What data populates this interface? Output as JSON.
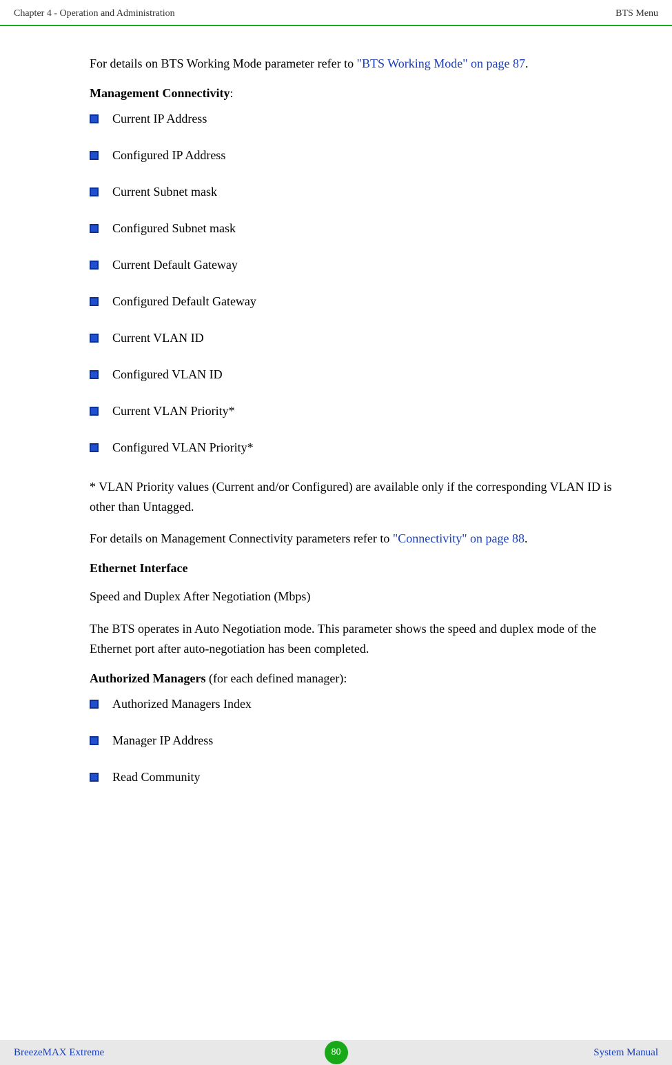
{
  "header": {
    "left": "Chapter 4 - Operation and Administration",
    "right": "BTS Menu"
  },
  "intro": {
    "prefix": "For details on BTS Working Mode parameter refer to ",
    "link": "\"BTS Working Mode\" on page 87",
    "suffix": "."
  },
  "management_connectivity": {
    "title": "Management Connectivity",
    "items": [
      "Current IP Address",
      "Configured IP Address",
      "Current Subnet mask",
      "Configured Subnet mask",
      "Current Default Gateway",
      "Configured Default Gateway",
      "Current VLAN ID",
      "Configured VLAN ID",
      "Current VLAN Priority*",
      "Configured VLAN Priority*"
    ]
  },
  "footnote": "* VLAN Priority values (Current and/or Configured) are available only if the corresponding VLAN ID is other than Untagged.",
  "connectivity_ref": {
    "prefix": "For details on Management Connectivity parameters refer to ",
    "link": "\"Connectivity\" on page 88",
    "suffix": "."
  },
  "ethernet": {
    "title": "Ethernet Interface",
    "sub": "Speed and Duplex After Negotiation (Mbps)",
    "desc": "The BTS operates in Auto Negotiation mode. This parameter shows the speed and duplex mode of the Ethernet port after auto-negotiation has been completed."
  },
  "authorized": {
    "title": "Authorized Managers",
    "suffix": " (for each defined manager):",
    "items": [
      "Authorized Managers Index",
      "Manager IP Address",
      "Read Community"
    ]
  },
  "footer": {
    "left": "BreezeMAX Extreme",
    "page": "80",
    "right": "System Manual"
  }
}
